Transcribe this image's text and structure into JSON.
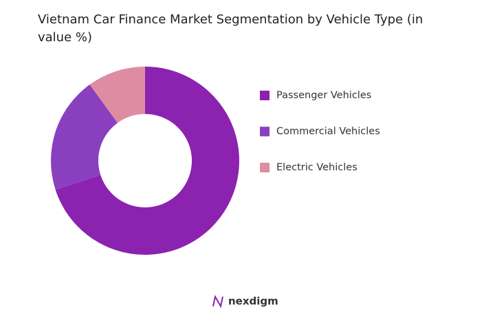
{
  "chart_data": {
    "type": "donut",
    "title": "Vietnam Car Finance Market Segmentation by Vehicle Type (in value %)",
    "categories": [
      "Passenger Vehicles",
      "Commercial Vehicles",
      "Electric Vehicles"
    ],
    "values": [
      70,
      20,
      10
    ],
    "colors": [
      "#8b22b0",
      "#8a3fbf",
      "#de8ca2"
    ]
  },
  "brand": "nexdigm"
}
